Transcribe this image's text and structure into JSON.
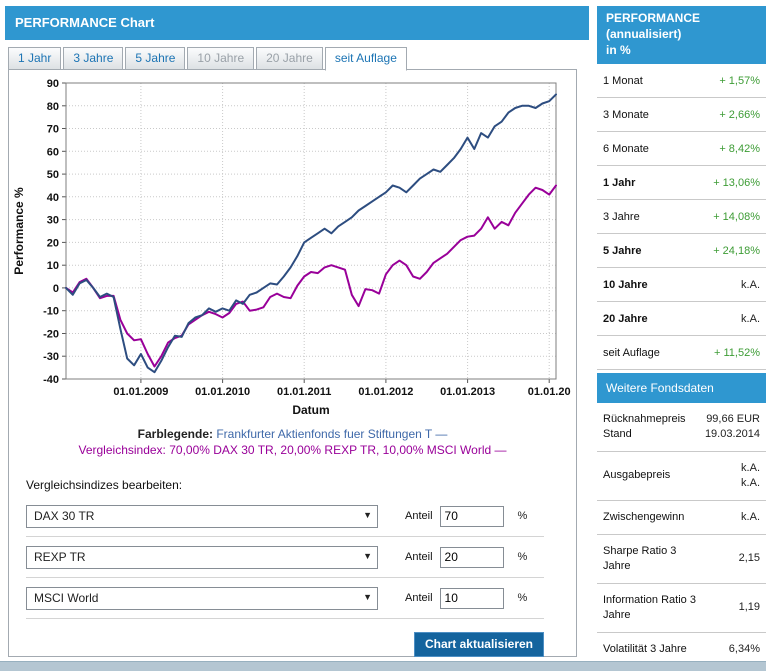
{
  "header": {
    "title": "PERFORMANCE Chart"
  },
  "tabs": [
    {
      "label": "1 Jahr",
      "state": "enabled"
    },
    {
      "label": "3 Jahre",
      "state": "enabled"
    },
    {
      "label": "5 Jahre",
      "state": "enabled"
    },
    {
      "label": "10 Jahre",
      "state": "disabled"
    },
    {
      "label": "20 Jahre",
      "state": "disabled"
    },
    {
      "label": "seit Auflage",
      "state": "active"
    }
  ],
  "colors": {
    "accent_blue": "#2f97d0",
    "button_blue": "#14649e",
    "positive_green": "#3d9c35",
    "line_blue": "#2d4d80",
    "line_purple": "#990099"
  },
  "chart_data": {
    "type": "line",
    "ylabel": "Performance %",
    "xlabel": "Datum",
    "ylim": [
      -40,
      90
    ],
    "ytick_step": 10,
    "grid": true,
    "x_ticks": [
      {
        "label": "01.01.2009",
        "t": 2009
      },
      {
        "label": "01.01.2010",
        "t": 2010
      },
      {
        "label": "01.01.2011",
        "t": 2011
      },
      {
        "label": "01.01.2012",
        "t": 2012
      },
      {
        "label": "01.01.2013",
        "t": 2013
      },
      {
        "label": "01.01.20",
        "t": 2014
      }
    ],
    "series": [
      {
        "name": "Vergleichsindex: 70,00% DAX 30 TR, 20,00% REXP TR, 10,00% MSCI World",
        "color": "#990099",
        "start_t": 2008.083,
        "dt": 0.083333,
        "values": [
          0,
          -2,
          2.5,
          4,
          0,
          -4.5,
          -3.5,
          -3.5,
          -14,
          -20,
          -23,
          -22.5,
          -29,
          -34.5,
          -30,
          -24,
          -22,
          -21,
          -16,
          -14,
          -12,
          -10.5,
          -11.5,
          -13,
          -11,
          -7,
          -6,
          -10,
          -9.5,
          -8.5,
          -4,
          -2.5,
          -4,
          -4.5,
          1,
          5,
          7,
          6.5,
          9,
          10,
          9,
          8,
          -3,
          -8,
          -0.5,
          -1,
          -2.5,
          6,
          10,
          12,
          10,
          5,
          4,
          7,
          11,
          13,
          15,
          18,
          21,
          22.5,
          23,
          26,
          31,
          26,
          29,
          27.5,
          33,
          37,
          41,
          44,
          43,
          41,
          45
        ]
      },
      {
        "name": "Frankfurter Aktienfonds fuer Stiftungen T",
        "color": "#2d4d80",
        "start_t": 2008.083,
        "dt": 0.083333,
        "values": [
          0,
          -3,
          2,
          3.5,
          0,
          -4,
          -2.5,
          -4,
          -18,
          -31,
          -34,
          -29,
          -35,
          -37,
          -32,
          -26,
          -21,
          -21.5,
          -15.5,
          -13,
          -12,
          -9,
          -10.5,
          -9,
          -10,
          -5.5,
          -7,
          -3,
          -2,
          0,
          2,
          1.5,
          5,
          9,
          14,
          20,
          22,
          24,
          26,
          24,
          27,
          29,
          31,
          34,
          36,
          38,
          40,
          42,
          45,
          44,
          42,
          45,
          48,
          50,
          52,
          51,
          54,
          57,
          61,
          66,
          61,
          68,
          66,
          71,
          73,
          77,
          79,
          80,
          80,
          79,
          81,
          82,
          85
        ]
      }
    ]
  },
  "legend": {
    "farblegende_label": "Farblegende:",
    "fund_text": "Frankfurter Aktienfonds fuer Stiftungen T —",
    "index_text": "Vergleichsindex: 70,00% DAX 30 TR, 20,00% REXP TR, 10,00% MSCI World —"
  },
  "controls": {
    "heading": "Vergleichsindizes bearbeiten:",
    "rows": [
      {
        "index_name": "DAX 30 TR",
        "anteil_label": "Anteil",
        "value": "70",
        "percent_label": "%"
      },
      {
        "index_name": "REXP TR",
        "anteil_label": "Anteil",
        "value": "20",
        "percent_label": "%"
      },
      {
        "index_name": "MSCI World",
        "anteil_label": "Anteil",
        "value": "10",
        "percent_label": "%"
      }
    ],
    "button_label": "Chart aktualisieren"
  },
  "sidebar": {
    "title_line1": "PERFORMANCE (annualisiert)",
    "title_line2": "in %",
    "rows": [
      {
        "label": "1 Monat",
        "value": "+ 1,57%"
      },
      {
        "label": "3 Monate",
        "value": "+ 2,66%"
      },
      {
        "label": "6 Monate",
        "value": "+ 8,42%"
      },
      {
        "label": "1 Jahr",
        "value": "+ 13,06%"
      },
      {
        "label": "3 Jahre",
        "value": "+ 14,08%"
      },
      {
        "label": "5 Jahre",
        "value": "+ 24,18%"
      },
      {
        "label": "10 Jahre",
        "value": "k.A."
      },
      {
        "label": "20 Jahre",
        "value": "k.A."
      },
      {
        "label": "seit Auflage",
        "value": "+ 11,52%"
      }
    ],
    "fonds_header": "Weitere Fondsdaten",
    "fonds_rows": [
      {
        "label": "Rücknahmepreis",
        "label2": "Stand",
        "value": "99,66 EUR",
        "value2": "19.03.2014"
      },
      {
        "label": "Ausgabepreis",
        "label2": "",
        "value": "k.A.",
        "value2": "k.A."
      },
      {
        "label": "Zwischengewinn",
        "label2": "",
        "value": "k.A.",
        "value2": ""
      },
      {
        "label": "Sharpe Ratio 3 Jahre",
        "label2": "",
        "value": "2,15",
        "value2": ""
      },
      {
        "label": "Information Ratio 3",
        "label2": "Jahre",
        "value": "1,19",
        "value2": ""
      },
      {
        "label": "Volatilität 3 Jahre",
        "label2": "",
        "value": "6,34%",
        "value2": ""
      }
    ]
  }
}
